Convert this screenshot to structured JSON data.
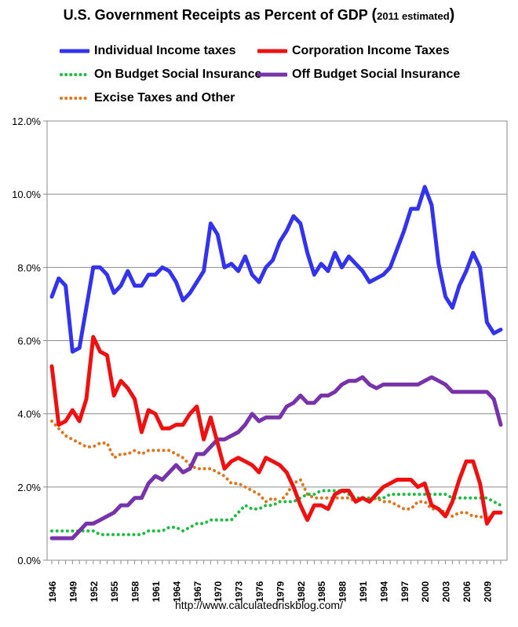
{
  "title": {
    "main": "U.S. Government Receipts as Percent of GDP ",
    "paren_open": "(",
    "estimate": "2011 estimated",
    "paren_close": ")"
  },
  "source_url": "http://www.calculatedriskblog.com/",
  "chart_data": {
    "type": "line",
    "title": "U.S. Government Receipts as Percent of GDP (2011 estimated)",
    "xlabel": "",
    "ylabel": "",
    "ylim": [
      0,
      12
    ],
    "y_ticks": [
      "0.0%",
      "2.0%",
      "4.0%",
      "6.0%",
      "8.0%",
      "10.0%",
      "12.0%"
    ],
    "x_ticks": [
      "1946",
      "1949",
      "1952",
      "1955",
      "1958",
      "1961",
      "1964",
      "1967",
      "1970",
      "1973",
      "1976",
      "1979",
      "1982",
      "1985",
      "1988",
      "1991",
      "1994",
      "1997",
      "2000",
      "2003",
      "2006",
      "2009"
    ],
    "grid": "horizontal",
    "legend": "top",
    "x": [
      1946,
      1947,
      1948,
      1949,
      1950,
      1951,
      1952,
      1953,
      1954,
      1955,
      1956,
      1957,
      1958,
      1959,
      1960,
      1961,
      1962,
      1963,
      1964,
      1965,
      1966,
      1967,
      1968,
      1969,
      1970,
      1971,
      1972,
      1973,
      1974,
      1975,
      1976,
      1977,
      1978,
      1979,
      1980,
      1981,
      1982,
      1983,
      1984,
      1985,
      1986,
      1987,
      1988,
      1989,
      1990,
      1991,
      1992,
      1993,
      1994,
      1995,
      1996,
      1997,
      1998,
      1999,
      2000,
      2001,
      2002,
      2003,
      2004,
      2005,
      2006,
      2007,
      2008,
      2009,
      2010,
      2011
    ],
    "series": [
      {
        "name": "Individual Income taxes",
        "color": "#3333ee",
        "style": "solid",
        "values": [
          7.2,
          7.7,
          7.5,
          5.7,
          5.8,
          6.9,
          8.0,
          8.0,
          7.8,
          7.3,
          7.5,
          7.9,
          7.5,
          7.5,
          7.8,
          7.8,
          8.0,
          7.9,
          7.6,
          7.1,
          7.3,
          7.6,
          7.9,
          9.2,
          8.9,
          8.0,
          8.1,
          7.9,
          8.3,
          7.8,
          7.6,
          8.0,
          8.2,
          8.7,
          9.0,
          9.4,
          9.2,
          8.4,
          7.8,
          8.1,
          7.9,
          8.4,
          8.0,
          8.3,
          8.1,
          7.9,
          7.6,
          7.7,
          7.8,
          8.0,
          8.5,
          9.0,
          9.6,
          9.6,
          10.2,
          9.7,
          8.1,
          7.2,
          6.9,
          7.5,
          7.9,
          8.4,
          8.0,
          6.5,
          6.2,
          6.3
        ]
      },
      {
        "name": "Corporation Income Taxes",
        "color": "#ee1111",
        "style": "solid",
        "values": [
          5.3,
          3.7,
          3.8,
          4.1,
          3.8,
          4.4,
          6.1,
          5.7,
          5.6,
          4.5,
          4.9,
          4.7,
          4.4,
          3.5,
          4.1,
          4.0,
          3.6,
          3.6,
          3.7,
          3.7,
          4.0,
          4.2,
          3.3,
          3.9,
          3.2,
          2.5,
          2.7,
          2.8,
          2.7,
          2.6,
          2.4,
          2.8,
          2.7,
          2.6,
          2.4,
          2.0,
          1.5,
          1.1,
          1.5,
          1.5,
          1.4,
          1.8,
          1.9,
          1.9,
          1.6,
          1.7,
          1.6,
          1.8,
          2.0,
          2.1,
          2.2,
          2.2,
          2.2,
          2.0,
          2.1,
          1.5,
          1.4,
          1.2,
          1.6,
          2.2,
          2.7,
          2.7,
          2.1,
          1.0,
          1.3,
          1.3
        ]
      },
      {
        "name": "On Budget Social Insurance",
        "color": "#22bb44",
        "style": "dotted",
        "values": [
          0.8,
          0.8,
          0.8,
          0.8,
          0.8,
          0.8,
          0.8,
          0.7,
          0.7,
          0.7,
          0.7,
          0.7,
          0.7,
          0.7,
          0.8,
          0.8,
          0.8,
          0.9,
          0.9,
          0.8,
          0.9,
          1.0,
          1.0,
          1.1,
          1.1,
          1.1,
          1.1,
          1.3,
          1.5,
          1.4,
          1.4,
          1.5,
          1.5,
          1.6,
          1.6,
          1.6,
          1.7,
          1.8,
          1.8,
          1.9,
          1.9,
          1.9,
          1.9,
          1.8,
          1.7,
          1.7,
          1.7,
          1.7,
          1.7,
          1.8,
          1.8,
          1.8,
          1.8,
          1.8,
          1.8,
          1.8,
          1.8,
          1.8,
          1.7,
          1.7,
          1.7,
          1.7,
          1.7,
          1.7,
          1.6,
          1.5
        ]
      },
      {
        "name": "Off Budget Social Insurance",
        "color": "#7733aa",
        "style": "solid",
        "values": [
          0.6,
          0.6,
          0.6,
          0.6,
          0.8,
          1.0,
          1.0,
          1.1,
          1.2,
          1.3,
          1.5,
          1.5,
          1.7,
          1.7,
          2.1,
          2.3,
          2.2,
          2.4,
          2.6,
          2.4,
          2.5,
          2.9,
          2.9,
          3.1,
          3.3,
          3.3,
          3.4,
          3.5,
          3.7,
          4.0,
          3.8,
          3.9,
          3.9,
          3.9,
          4.2,
          4.3,
          4.5,
          4.3,
          4.3,
          4.5,
          4.5,
          4.6,
          4.8,
          4.9,
          4.9,
          5.0,
          4.8,
          4.7,
          4.8,
          4.8,
          4.8,
          4.8,
          4.8,
          4.8,
          4.9,
          5.0,
          4.9,
          4.8,
          4.6,
          4.6,
          4.6,
          4.6,
          4.6,
          4.6,
          4.4,
          3.7
        ]
      },
      {
        "name": "Excise Taxes and Other",
        "color": "#dd7722",
        "style": "dotted",
        "values": [
          3.8,
          3.6,
          3.4,
          3.3,
          3.2,
          3.1,
          3.1,
          3.2,
          3.2,
          2.8,
          2.9,
          2.9,
          3.0,
          2.9,
          3.0,
          3.0,
          3.0,
          3.0,
          2.9,
          2.8,
          2.6,
          2.5,
          2.5,
          2.5,
          2.4,
          2.3,
          2.1,
          2.1,
          2.0,
          1.9,
          1.8,
          1.6,
          1.7,
          1.6,
          1.8,
          2.1,
          2.2,
          1.8,
          1.7,
          1.7,
          1.7,
          1.7,
          1.7,
          1.7,
          1.6,
          1.7,
          1.6,
          1.7,
          1.6,
          1.6,
          1.5,
          1.4,
          1.4,
          1.6,
          1.6,
          1.4,
          1.4,
          1.3,
          1.2,
          1.3,
          1.3,
          1.2,
          1.2,
          1.1,
          1.3,
          1.3
        ]
      }
    ]
  }
}
